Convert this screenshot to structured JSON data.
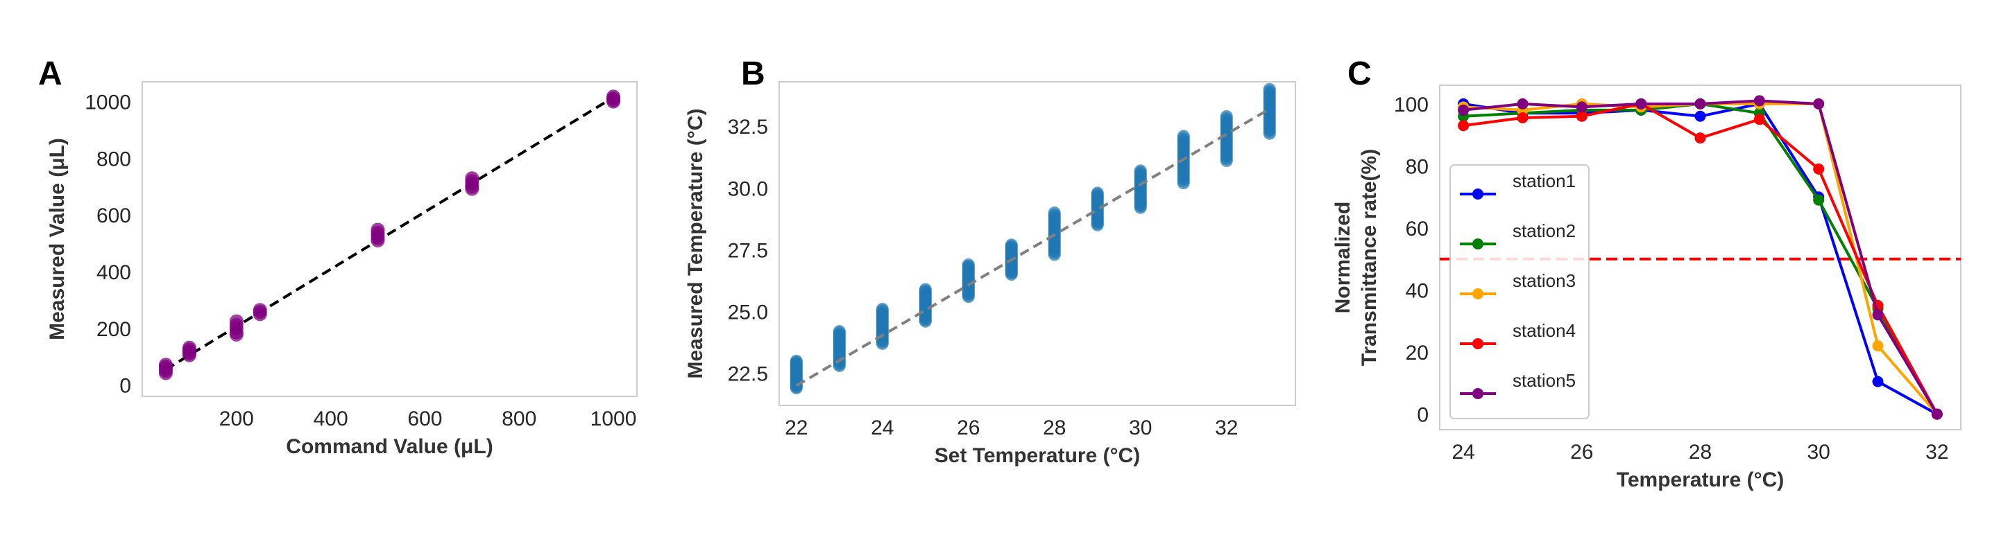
{
  "chart_data": [
    {
      "panel_label": "A",
      "type": "scatter",
      "xlabel": "Command Value (μL)",
      "ylabel": "Measured Value (μL)",
      "xlim": [
        0,
        1050
      ],
      "ylim": [
        -40,
        1070
      ],
      "xticks": [
        200,
        400,
        600,
        800,
        1000
      ],
      "yticks": [
        0,
        200,
        400,
        600,
        800,
        1000
      ],
      "grid": false,
      "point_color": "#800080",
      "fit_line": {
        "x": [
          50,
          1000
        ],
        "y": [
          55,
          1015
        ],
        "color": "#000000",
        "style": "dashed"
      },
      "points": [
        {
          "x": 50,
          "y": [
            42,
            50,
            58,
            65,
            72
          ]
        },
        {
          "x": 100,
          "y": [
            105,
            112,
            118,
            125,
            132
          ]
        },
        {
          "x": 200,
          "y": [
            178,
            186,
            200,
            212,
            225
          ]
        },
        {
          "x": 250,
          "y": [
            250,
            258,
            265
          ]
        },
        {
          "x": 500,
          "y": [
            510,
            518,
            528,
            538,
            548
          ]
        },
        {
          "x": 700,
          "y": [
            692,
            700,
            710,
            720,
            730
          ]
        },
        {
          "x": 1000,
          "y": [
            1000,
            1006,
            1012,
            1018
          ]
        }
      ]
    },
    {
      "panel_label": "B",
      "type": "scatter",
      "xlabel": "Set Temperature (°C)",
      "ylabel": "Measured Temperature (°C)",
      "xlim": [
        21.6,
        33.6
      ],
      "ylim": [
        21.2,
        34.3
      ],
      "xticks": [
        22,
        24,
        26,
        28,
        30,
        32
      ],
      "yticks": [
        22.5,
        25.0,
        27.5,
        30.0,
        32.5
      ],
      "ytick_labels": [
        "22.5",
        "25.0",
        "27.5",
        "30.0",
        "32.5"
      ],
      "grid": false,
      "point_color": "#1f77b4",
      "fit_line": {
        "x": [
          22,
          33
        ],
        "y": [
          22.0,
          33.2
        ],
        "color": "#808080",
        "style": "dashed"
      },
      "clusters": [
        {
          "x": 22,
          "ymin": 21.9,
          "ymax": 23.0
        },
        {
          "x": 23,
          "ymin": 22.8,
          "ymax": 24.2
        },
        {
          "x": 24,
          "ymin": 23.7,
          "ymax": 25.1
        },
        {
          "x": 25,
          "ymin": 24.6,
          "ymax": 25.9
        },
        {
          "x": 26,
          "ymin": 25.6,
          "ymax": 26.9
        },
        {
          "x": 27,
          "ymin": 26.5,
          "ymax": 27.7
        },
        {
          "x": 28,
          "ymin": 27.3,
          "ymax": 29.0
        },
        {
          "x": 29,
          "ymin": 28.5,
          "ymax": 29.8
        },
        {
          "x": 30,
          "ymin": 29.2,
          "ymax": 30.7
        },
        {
          "x": 31,
          "ymin": 30.2,
          "ymax": 32.1
        },
        {
          "x": 32,
          "ymin": 31.1,
          "ymax": 32.9
        },
        {
          "x": 33,
          "ymin": 32.2,
          "ymax": 34.0
        }
      ]
    },
    {
      "panel_label": "C",
      "type": "line",
      "xlabel": "Temperature (°C)",
      "ylabel_lines": [
        "Normalized",
        "Transmittance rate(%)"
      ],
      "xlim": [
        23.6,
        32.4
      ],
      "ylim": [
        -5,
        106
      ],
      "xticks": [
        24,
        26,
        28,
        30,
        32
      ],
      "yticks": [
        0,
        20,
        40,
        60,
        80,
        100
      ],
      "grid": false,
      "threshold": {
        "y": 50,
        "color": "#ff0000",
        "style": "dashed"
      },
      "x": [
        24,
        25,
        26,
        27,
        28,
        29,
        30,
        31,
        32
      ],
      "series": [
        {
          "name": "station1",
          "color": "#0000ff",
          "values": [
            100,
            97,
            97,
            98,
            96,
            100,
            70,
            10.5,
            0
          ]
        },
        {
          "name": "station2",
          "color": "#008000",
          "values": [
            96,
            97,
            98,
            98,
            100,
            97,
            69,
            34,
            0
          ]
        },
        {
          "name": "station3",
          "color": "#ffa500",
          "values": [
            99,
            98,
            100,
            99,
            100,
            100,
            100,
            22,
            0
          ]
        },
        {
          "name": "station4",
          "color": "#ff0000",
          "values": [
            93,
            95.5,
            96,
            100,
            89,
            95,
            79,
            35,
            0
          ]
        },
        {
          "name": "station5",
          "color": "#800080",
          "values": [
            98,
            100,
            99,
            100,
            100,
            101,
            100,
            32,
            0
          ]
        }
      ],
      "legend_position": "middle-left"
    }
  ]
}
